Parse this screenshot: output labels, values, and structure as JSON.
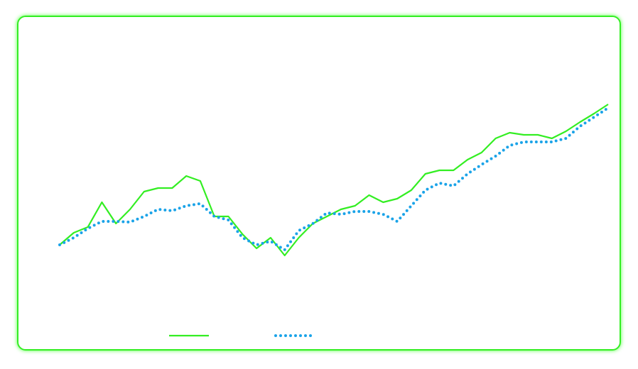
{
  "chart_data": {
    "type": "line",
    "ylim": [
      0,
      400
    ],
    "legend": "bottom",
    "series": [
      {
        "color": "#33ee22",
        "style": "solid",
        "values": [
          95,
          112,
          120,
          155,
          125,
          145,
          170,
          175,
          175,
          192,
          185,
          135,
          135,
          110,
          90,
          105,
          80,
          105,
          125,
          135,
          145,
          150,
          165,
          155,
          160,
          172,
          195,
          200,
          200,
          215,
          225,
          245,
          253,
          250,
          250,
          245,
          255,
          268,
          280,
          293
        ]
      },
      {
        "color": "#1aa3e8",
        "style": "dotted",
        "values": [
          95,
          105,
          118,
          128,
          128,
          127,
          135,
          145,
          143,
          150,
          153,
          135,
          130,
          105,
          95,
          100,
          88,
          115,
          125,
          140,
          138,
          142,
          142,
          138,
          128,
          150,
          172,
          182,
          178,
          195,
          208,
          220,
          235,
          240,
          240,
          240,
          245,
          262,
          275,
          288
        ]
      }
    ]
  }
}
